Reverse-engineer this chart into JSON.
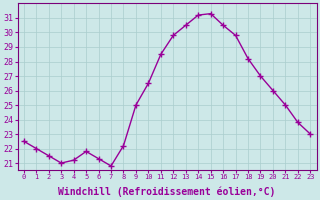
{
  "x": [
    0,
    1,
    2,
    3,
    4,
    5,
    6,
    7,
    8,
    9,
    10,
    11,
    12,
    13,
    14,
    15,
    16,
    17,
    18,
    19,
    20,
    21,
    22,
    23
  ],
  "y": [
    22.5,
    22.0,
    21.5,
    21.0,
    21.2,
    21.8,
    21.3,
    20.8,
    22.2,
    25.0,
    26.5,
    28.5,
    29.8,
    30.5,
    31.2,
    31.3,
    30.5,
    29.8,
    28.2,
    27.0,
    26.0,
    25.0,
    23.8,
    23.0
  ],
  "line_color": "#990099",
  "marker": "+",
  "marker_size": 4,
  "linewidth": 1.0,
  "xlabel": "Windchill (Refroidissement éolien,°C)",
  "xlabel_fontsize": 7,
  "ylim": [
    20.5,
    32.0
  ],
  "xlim": [
    -0.5,
    23.5
  ],
  "yticks": [
    21,
    22,
    23,
    24,
    25,
    26,
    27,
    28,
    29,
    30,
    31
  ],
  "xticks": [
    0,
    1,
    2,
    3,
    4,
    5,
    6,
    7,
    8,
    9,
    10,
    11,
    12,
    13,
    14,
    15,
    16,
    17,
    18,
    19,
    20,
    21,
    22,
    23
  ],
  "xtick_fontsize": 5.0,
  "ytick_fontsize": 6.0,
  "background_color": "#cde8e8",
  "grid_color": "#aacece",
  "grid_linewidth": 0.5,
  "spine_color": "#7a007a"
}
